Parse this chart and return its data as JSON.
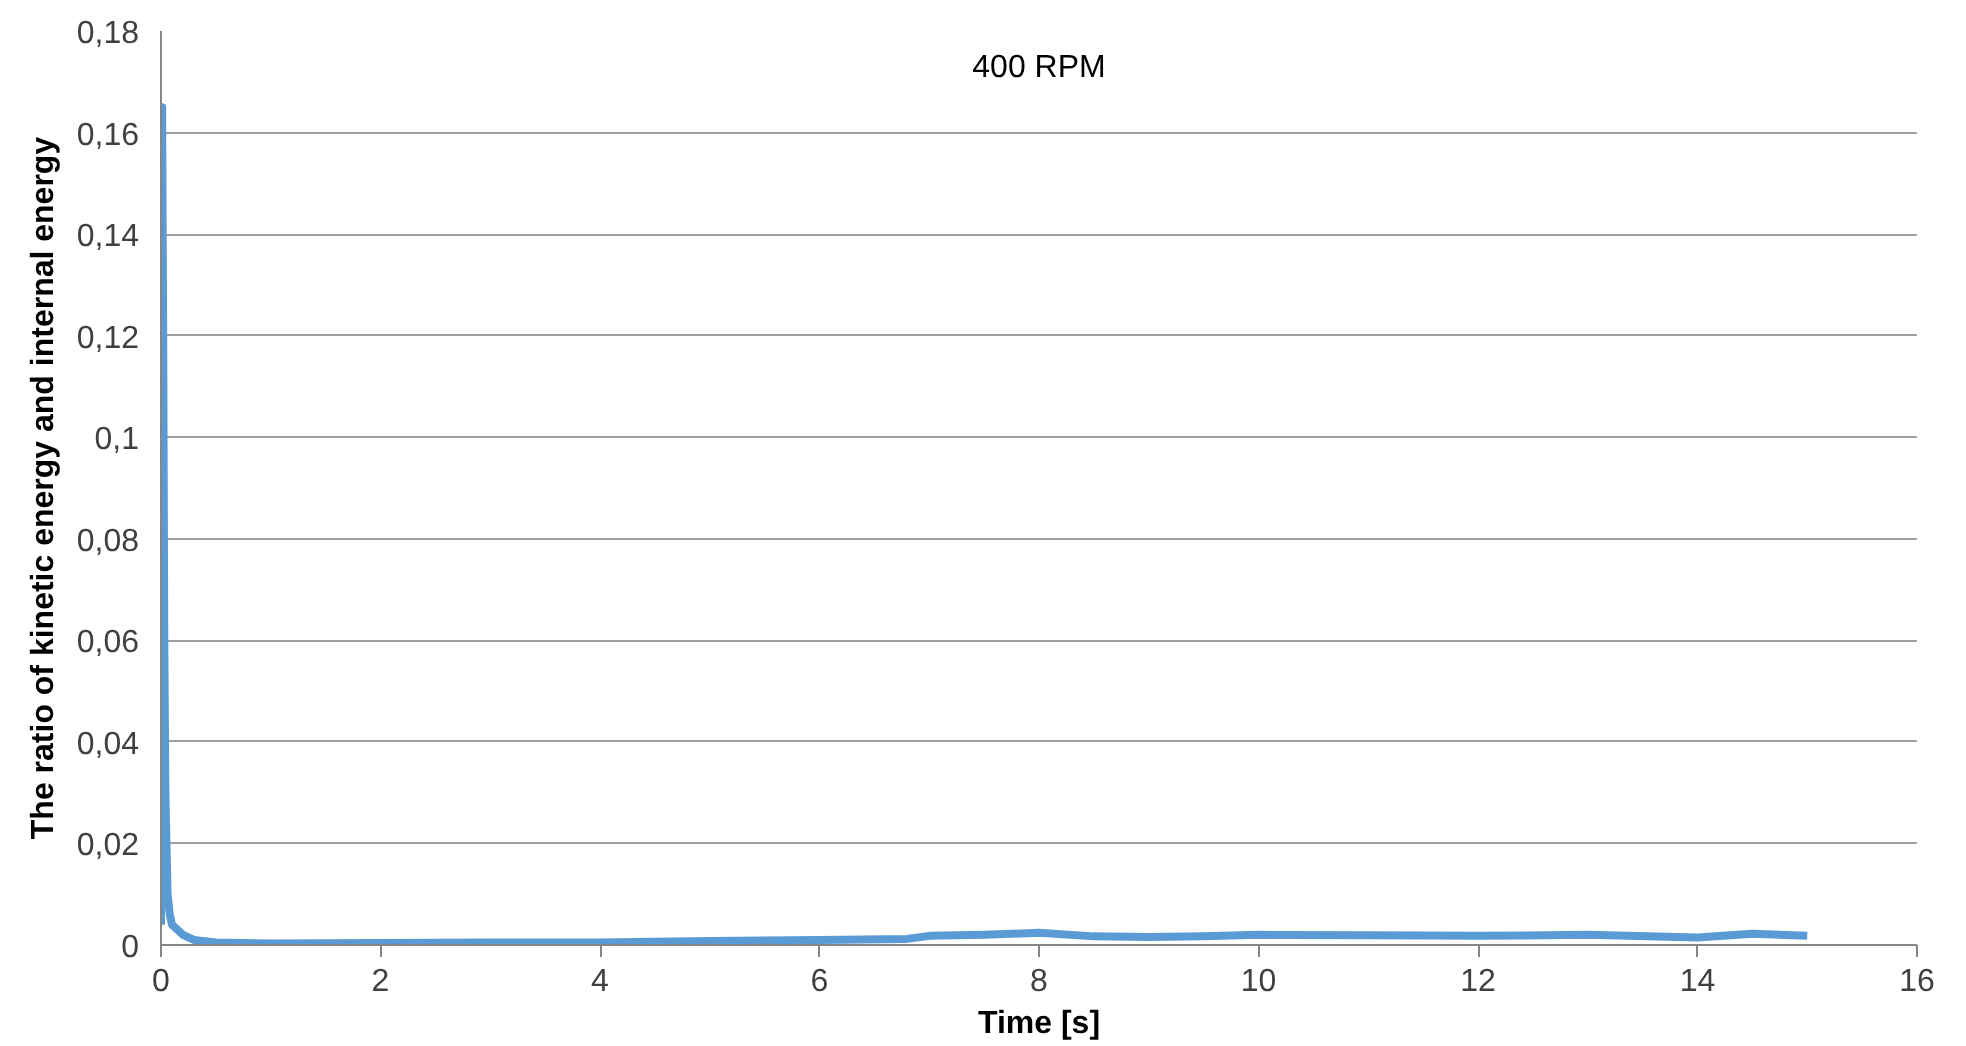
{
  "chart_data": {
    "type": "line",
    "title": "400 RPM",
    "xlabel": "Time [s]",
    "ylabel": "The ratio of kinetic energy and internal energy",
    "x": [
      0,
      0.01,
      0.02,
      0.03,
      0.04,
      0.06,
      0.08,
      0.1,
      0.15,
      0.2,
      0.3,
      0.5,
      1,
      2,
      3,
      4,
      5,
      6,
      6.8,
      7,
      7.5,
      8,
      8.5,
      9,
      9.5,
      10,
      11,
      12,
      13,
      14,
      14.5,
      15
    ],
    "series": [
      {
        "color": "#5b9bd5",
        "values": [
          0.004,
          0.165,
          0.12,
          0.06,
          0.03,
          0.01,
          0.006,
          0.004,
          0.003,
          0.002,
          0.001,
          0.0005,
          0.0003,
          0.0004,
          0.0005,
          0.0005,
          0.0008,
          0.001,
          0.0012,
          0.0018,
          0.002,
          0.0024,
          0.0017,
          0.0016,
          0.0017,
          0.002,
          0.0019,
          0.0018,
          0.002,
          0.0015,
          0.0022,
          0.0018
        ]
      }
    ],
    "xlim": [
      0,
      16
    ],
    "xticks": [
      0,
      2,
      4,
      6,
      8,
      10,
      12,
      14,
      16
    ],
    "ylim": [
      0,
      0.18
    ],
    "yticks": [
      0,
      {
        "value": 0.02,
        "label": "0,02"
      },
      {
        "value": 0.04,
        "label": "0,04"
      },
      {
        "value": 0.06,
        "label": "0,06"
      },
      {
        "value": 0.08,
        "label": "0,08"
      },
      {
        "value": 0.1,
        "label": "0,1"
      },
      {
        "value": 0.12,
        "label": "0,12"
      },
      {
        "value": 0.14,
        "label": "0,14"
      },
      {
        "value": 0.16,
        "label": "0,16"
      },
      {
        "value": 0.18,
        "label": "0,18"
      }
    ],
    "grid": "y",
    "marker": "none",
    "line_style": "solid"
  }
}
